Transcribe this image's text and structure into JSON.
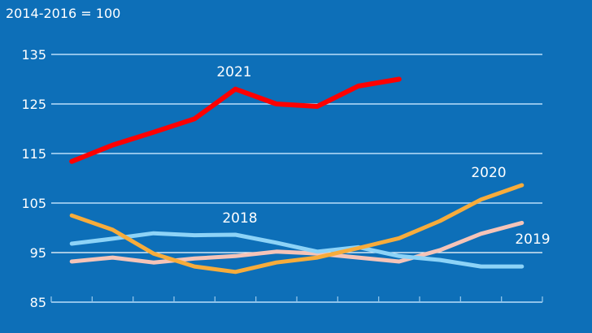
{
  "chart_data": {
    "type": "line",
    "title": "",
    "subtitle": "2014-2016 = 100",
    "xlabel": "",
    "ylabel": "",
    "x": [
      1,
      2,
      3,
      4,
      5,
      6,
      7,
      8,
      9,
      10,
      11,
      12
    ],
    "x_tick_labels": [],
    "y_ticks": [
      85,
      95,
      105,
      115,
      125,
      135
    ],
    "ylim": [
      85,
      135
    ],
    "grid": true,
    "legend": "inline-labels",
    "series": [
      {
        "name": "2021",
        "color": "#ff0000",
        "values": [
          113.4,
          116.7,
          119.3,
          122.0,
          128.0,
          125.0,
          124.5,
          128.6,
          130.0,
          null,
          null,
          null
        ]
      },
      {
        "name": "2020",
        "color": "#f7ac3b",
        "values": [
          102.5,
          99.6,
          94.8,
          92.2,
          91.1,
          93.0,
          94.0,
          95.9,
          97.9,
          101.4,
          105.7,
          108.6
        ]
      },
      {
        "name": "2019",
        "color": "#f5c4b8",
        "values": [
          93.2,
          94.0,
          93.0,
          93.8,
          94.3,
          95.2,
          94.8,
          94.0,
          93.2,
          95.5,
          98.8,
          101.0
        ]
      },
      {
        "name": "2018",
        "color": "#8dd3f7",
        "values": [
          96.8,
          97.8,
          98.9,
          98.5,
          98.6,
          97.0,
          95.2,
          96.1,
          94.3,
          93.5,
          92.2,
          92.2
        ]
      }
    ]
  },
  "colors": {
    "background": "#0d6fb8",
    "grid": "#8fc3ea",
    "text": "#ffffff"
  }
}
